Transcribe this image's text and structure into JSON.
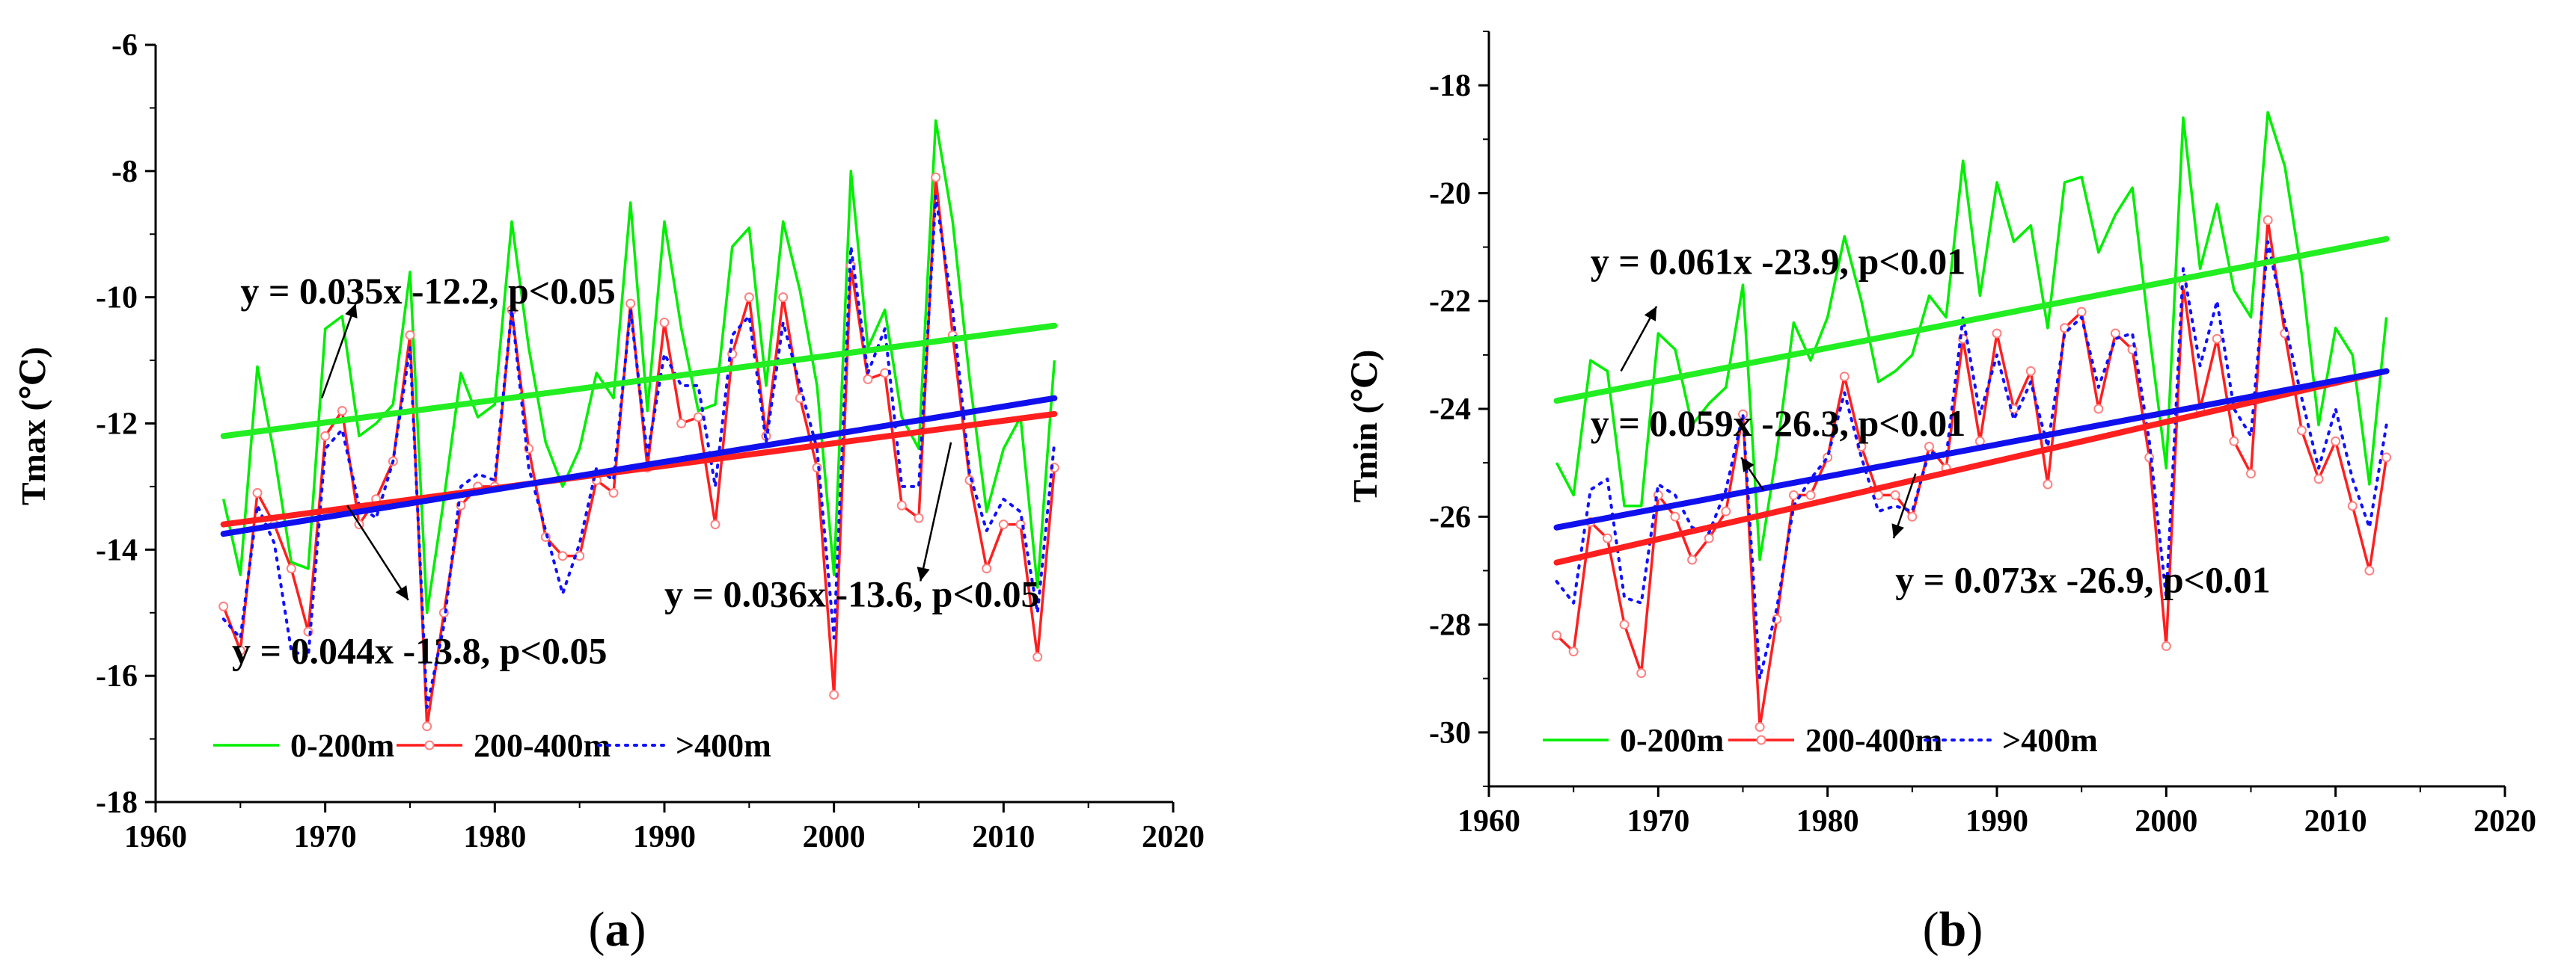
{
  "chart_data": [
    {
      "type": "line",
      "panel_label": "(a)",
      "panel_letter": "a",
      "ylabel": "Tmax (℃)",
      "xlabel": "",
      "xlim": [
        1960,
        2020
      ],
      "ylim": [
        -18,
        -6
      ],
      "xticks": [
        1960,
        1970,
        1980,
        1990,
        2000,
        2010,
        2020
      ],
      "yticks": [
        -6,
        -8,
        -10,
        -12,
        -14,
        -16,
        -18
      ],
      "x": [
        1964,
        1965,
        1966,
        1967,
        1968,
        1969,
        1970,
        1971,
        1972,
        1973,
        1974,
        1975,
        1976,
        1977,
        1978,
        1979,
        1980,
        1981,
        1982,
        1983,
        1984,
        1985,
        1986,
        1987,
        1988,
        1989,
        1990,
        1991,
        1992,
        1993,
        1994,
        1995,
        1996,
        1997,
        1998,
        1999,
        2000,
        2001,
        2002,
        2003,
        2004,
        2005,
        2006,
        2007,
        2008,
        2009,
        2010,
        2011,
        2012,
        2013
      ],
      "series": [
        {
          "name": "0-200m",
          "color": "#00ee00",
          "style": "solid",
          "values": [
            -13.2,
            -14.4,
            -11.1,
            -12.5,
            -14.2,
            -14.3,
            -10.5,
            -10.3,
            -12.2,
            -12.0,
            -11.7,
            -9.6,
            -15.0,
            -13.2,
            -11.2,
            -11.9,
            -11.7,
            -8.8,
            -10.8,
            -12.3,
            -13.0,
            -12.4,
            -11.2,
            -11.6,
            -8.5,
            -11.8,
            -8.8,
            -10.5,
            -11.8,
            -11.7,
            -9.2,
            -8.9,
            -11.4,
            -8.8,
            -9.9,
            -11.4,
            -14.4,
            -8.0,
            -10.8,
            -10.2,
            -11.9,
            -12.4,
            -7.2,
            -8.8,
            -11.3,
            -13.4,
            -12.4,
            -11.9,
            -14.6,
            -11.0
          ]
        },
        {
          "name": "200-400m",
          "color": "#ff1f1f",
          "style": "solid-markers",
          "values": [
            -14.9,
            -15.6,
            -13.1,
            -13.6,
            -14.3,
            -15.3,
            -12.2,
            -11.8,
            -13.6,
            -13.2,
            -12.6,
            -10.6,
            -16.8,
            -15.0,
            -13.3,
            -13.0,
            -13.0,
            -10.2,
            -12.4,
            -13.8,
            -14.1,
            -14.1,
            -12.9,
            -13.1,
            -10.1,
            -12.7,
            -10.4,
            -12.0,
            -11.9,
            -13.6,
            -10.9,
            -10.0,
            -12.2,
            -10.0,
            -11.6,
            -12.7,
            -16.3,
            -9.5,
            -11.3,
            -11.2,
            -13.3,
            -13.5,
            -8.1,
            -10.6,
            -12.9,
            -14.3,
            -13.6,
            -13.6,
            -15.7,
            -12.7
          ]
        },
        {
          "name": ">400m",
          "color": "#1010ff",
          "style": "dotted",
          "values": [
            -15.1,
            -15.4,
            -13.3,
            -13.9,
            -15.6,
            -15.7,
            -12.4,
            -12.1,
            -13.3,
            -13.5,
            -12.6,
            -10.8,
            -16.5,
            -15.2,
            -13.0,
            -12.8,
            -12.9,
            -10.2,
            -12.7,
            -13.7,
            -14.7,
            -13.9,
            -12.7,
            -12.9,
            -10.2,
            -12.5,
            -10.9,
            -11.4,
            -11.4,
            -13.0,
            -10.6,
            -10.3,
            -12.3,
            -10.4,
            -11.4,
            -12.4,
            -15.4,
            -9.2,
            -11.2,
            -10.5,
            -13.0,
            -13.0,
            -8.4,
            -10.2,
            -12.8,
            -13.7,
            -13.2,
            -13.4,
            -15.0,
            -12.3
          ]
        }
      ],
      "trends": [
        {
          "series": "0-200m",
          "color": "#22ee22",
          "start": [
            1964,
            -12.2
          ],
          "end": [
            2013,
            -10.45
          ]
        },
        {
          "series": "200-400m",
          "color": "#ff1f1f",
          "start": [
            1964,
            -13.6
          ],
          "end": [
            2013,
            -11.85
          ]
        },
        {
          "series": ">400m",
          "color": "#1010ee",
          "start": [
            1964,
            -13.75
          ],
          "end": [
            2013,
            -11.6
          ]
        }
      ],
      "annotations": [
        {
          "text": "y = 0.035x -12.2, p<0.05",
          "arrow_from": [
            1969.8,
            -11.6
          ],
          "arrow_to": [
            1971.8,
            -10.1
          ],
          "text_at": [
            1965,
            -10.1
          ]
        },
        {
          "text": "y = 0.036x -13.6, p<0.05",
          "arrow_from": [
            2006.9,
            -12.3
          ],
          "arrow_to": [
            2005.1,
            -14.5
          ],
          "text_at": [
            1990,
            -14.9
          ]
        },
        {
          "text": "y = 0.044x -13.8, p<0.05",
          "arrow_from": [
            1971.3,
            -13.3
          ],
          "arrow_to": [
            1974.9,
            -14.8
          ],
          "text_at": [
            1964.5,
            -15.8
          ]
        }
      ],
      "legend": {
        "position": "bottom",
        "entries": [
          "0-200m",
          "200-400m",
          ">400m"
        ]
      }
    },
    {
      "type": "line",
      "panel_label": "(b)",
      "panel_letter": "b",
      "ylabel": "Tmin (℃)",
      "xlabel": "",
      "xlim": [
        1960,
        2020
      ],
      "ylim": [
        -31,
        -17
      ],
      "xticks": [
        1960,
        1970,
        1980,
        1990,
        2000,
        2010,
        2020
      ],
      "yticks": [
        -18,
        -20,
        -22,
        -24,
        -26,
        -28,
        -30
      ],
      "x": [
        1964,
        1965,
        1966,
        1967,
        1968,
        1969,
        1970,
        1971,
        1972,
        1973,
        1974,
        1975,
        1976,
        1977,
        1978,
        1979,
        1980,
        1981,
        1982,
        1983,
        1984,
        1985,
        1986,
        1987,
        1988,
        1989,
        1990,
        1991,
        1992,
        1993,
        1994,
        1995,
        1996,
        1997,
        1998,
        1999,
        2000,
        2001,
        2002,
        2003,
        2004,
        2005,
        2006,
        2007,
        2008,
        2009,
        2010,
        2011,
        2012,
        2013
      ],
      "series": [
        {
          "name": "0-200m",
          "color": "#00ee00",
          "style": "solid",
          "values": [
            -25.0,
            -25.6,
            -23.1,
            -23.3,
            -25.8,
            -25.8,
            -22.6,
            -22.9,
            -24.3,
            -23.9,
            -23.6,
            -21.7,
            -26.8,
            -24.8,
            -22.4,
            -23.1,
            -22.3,
            -20.8,
            -22.0,
            -23.5,
            -23.3,
            -23.0,
            -21.9,
            -22.3,
            -19.4,
            -21.9,
            -19.8,
            -20.9,
            -20.6,
            -22.5,
            -19.8,
            -19.7,
            -21.1,
            -20.4,
            -19.9,
            -22.6,
            -25.1,
            -18.6,
            -21.4,
            -20.2,
            -21.8,
            -22.3,
            -18.5,
            -19.5,
            -21.5,
            -24.3,
            -22.5,
            -23.0,
            -25.4,
            -22.3
          ]
        },
        {
          "name": "200-400m",
          "color": "#ff1f1f",
          "style": "solid-markers",
          "values": [
            -28.2,
            -28.5,
            -26.1,
            -26.4,
            -28.0,
            -28.9,
            -25.6,
            -26.0,
            -26.8,
            -26.4,
            -25.9,
            -24.1,
            -29.9,
            -27.9,
            -25.6,
            -25.6,
            -24.9,
            -23.4,
            -24.7,
            -25.6,
            -25.6,
            -26.0,
            -24.7,
            -25.1,
            -22.7,
            -24.6,
            -22.6,
            -24.0,
            -23.3,
            -25.4,
            -22.5,
            -22.2,
            -24.0,
            -22.6,
            -22.9,
            -24.9,
            -28.4,
            -21.7,
            -24.0,
            -22.7,
            -24.6,
            -25.2,
            -20.5,
            -22.6,
            -24.4,
            -25.3,
            -24.6,
            -25.8,
            -27.0,
            -24.9
          ]
        },
        {
          "name": ">400m",
          "color": "#1010ff",
          "style": "dotted",
          "values": [
            -27.2,
            -27.6,
            -25.5,
            -25.3,
            -27.5,
            -27.6,
            -25.4,
            -25.6,
            -26.2,
            -26.3,
            -25.5,
            -24.1,
            -29.0,
            -27.7,
            -25.8,
            -25.3,
            -24.9,
            -23.7,
            -24.9,
            -25.9,
            -25.8,
            -25.9,
            -24.8,
            -24.9,
            -22.3,
            -24.1,
            -23.0,
            -24.2,
            -23.5,
            -24.7,
            -22.6,
            -22.3,
            -23.6,
            -22.7,
            -22.6,
            -24.6,
            -27.5,
            -21.4,
            -23.2,
            -22.0,
            -24.0,
            -24.5,
            -20.9,
            -22.4,
            -23.8,
            -25.1,
            -24.0,
            -25.3,
            -26.2,
            -24.3
          ]
        }
      ],
      "trends": [
        {
          "series": "0-200m",
          "color": "#22ee22",
          "start": [
            1964,
            -23.85
          ],
          "end": [
            2013,
            -20.85
          ]
        },
        {
          "series": "200-400m",
          "color": "#ff1f1f",
          "start": [
            1964,
            -26.85
          ],
          "end": [
            2013,
            -23.3
          ]
        },
        {
          "series": ">400m",
          "color": "#1010ee",
          "start": [
            1964,
            -26.2
          ],
          "end": [
            2013,
            -23.3
          ]
        }
      ],
      "annotations": [
        {
          "text": "y = 0.061x -23.9, p<0.01",
          "arrow_from": [
            1967.8,
            -23.3
          ],
          "arrow_to": [
            1969.9,
            -22.1
          ],
          "text_at": [
            1966,
            -21.5
          ]
        },
        {
          "text": "y = 0.059x -26.3, p<0.01",
          "arrow_from": [
            1976.2,
            -25.5
          ],
          "arrow_to": [
            1974.9,
            -24.9
          ],
          "text_at": [
            1966,
            -24.5
          ]
        },
        {
          "text": "y = 0.073x -26.9, p<0.01",
          "arrow_from": [
            1985.2,
            -25.2
          ],
          "arrow_to": [
            1983.9,
            -26.4
          ],
          "text_at": [
            1984,
            -27.4
          ]
        }
      ],
      "legend": {
        "position": "bottom",
        "entries": [
          "0-200m",
          "200-400m",
          ">400m"
        ]
      }
    }
  ]
}
